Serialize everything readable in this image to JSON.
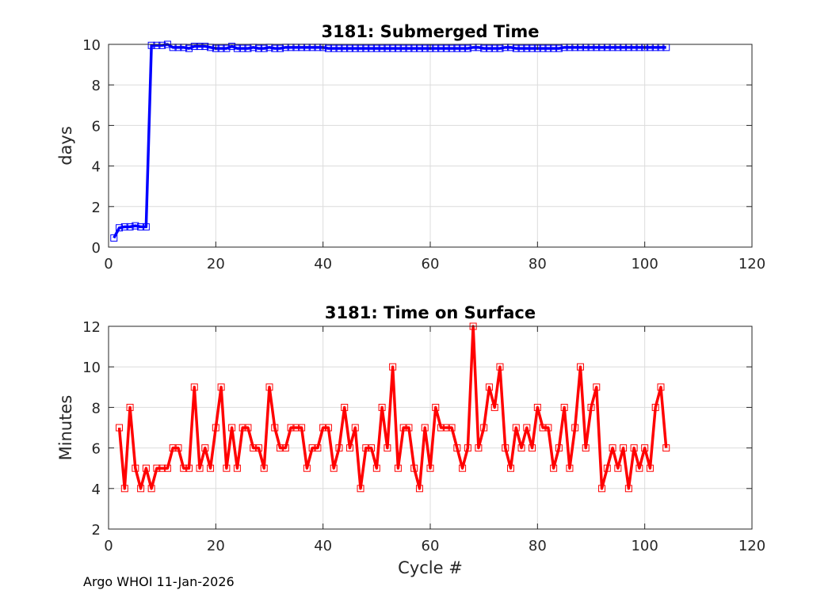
{
  "chart_data": [
    {
      "type": "line",
      "title": "3181: Submerged Time",
      "xlabel": "",
      "ylabel": "days",
      "xlim": [
        0,
        120
      ],
      "ylim": [
        0,
        10
      ],
      "xticks": [
        0,
        20,
        40,
        60,
        80,
        100,
        120
      ],
      "yticks": [
        0,
        2,
        4,
        6,
        8,
        10
      ],
      "grid": true,
      "color": "#0000ff",
      "marker": "square",
      "x": [
        1,
        2,
        3,
        4,
        5,
        6,
        7,
        8,
        9,
        10,
        11,
        12,
        13,
        14,
        15,
        16,
        17,
        18,
        19,
        20,
        21,
        22,
        23,
        24,
        25,
        26,
        27,
        28,
        29,
        30,
        31,
        32,
        33,
        34,
        35,
        36,
        37,
        38,
        39,
        40,
        41,
        42,
        43,
        44,
        45,
        46,
        47,
        48,
        49,
        50,
        51,
        52,
        53,
        54,
        55,
        56,
        57,
        58,
        59,
        60,
        61,
        62,
        63,
        64,
        65,
        66,
        67,
        68,
        69,
        70,
        71,
        72,
        73,
        74,
        75,
        76,
        77,
        78,
        79,
        80,
        81,
        82,
        83,
        84,
        85,
        86,
        87,
        88,
        89,
        90,
        91,
        92,
        93,
        94,
        95,
        96,
        97,
        98,
        99,
        100,
        101,
        102,
        103,
        104
      ],
      "y": [
        0.45,
        0.95,
        1.0,
        1.0,
        1.05,
        1.0,
        1.0,
        9.95,
        9.95,
        9.95,
        10.0,
        9.85,
        9.85,
        9.85,
        9.8,
        9.9,
        9.9,
        9.9,
        9.85,
        9.8,
        9.8,
        9.8,
        9.9,
        9.8,
        9.8,
        9.8,
        9.85,
        9.8,
        9.8,
        9.85,
        9.8,
        9.8,
        9.85,
        9.85,
        9.85,
        9.85,
        9.85,
        9.85,
        9.85,
        9.85,
        9.8,
        9.8,
        9.8,
        9.8,
        9.8,
        9.8,
        9.8,
        9.8,
        9.8,
        9.8,
        9.8,
        9.8,
        9.8,
        9.8,
        9.8,
        9.8,
        9.8,
        9.8,
        9.8,
        9.8,
        9.8,
        9.8,
        9.8,
        9.8,
        9.8,
        9.8,
        9.8,
        9.85,
        9.85,
        9.8,
        9.8,
        9.8,
        9.8,
        9.85,
        9.85,
        9.8,
        9.8,
        9.8,
        9.8,
        9.8,
        9.8,
        9.8,
        9.8,
        9.8,
        9.85,
        9.85,
        9.85,
        9.85,
        9.85,
        9.85,
        9.85,
        9.85,
        9.85,
        9.85,
        9.85,
        9.85,
        9.85,
        9.85,
        9.85,
        9.85,
        9.85,
        9.85,
        9.85,
        9.85
      ]
    },
    {
      "type": "line",
      "title": "3181: Time on Surface",
      "xlabel": "Cycle #",
      "ylabel": "Minutes",
      "xlim": [
        0,
        120
      ],
      "ylim": [
        2,
        12
      ],
      "xticks": [
        0,
        20,
        40,
        60,
        80,
        100,
        120
      ],
      "yticks": [
        2,
        4,
        6,
        8,
        10,
        12
      ],
      "grid": true,
      "color": "#ff0000",
      "marker": "square",
      "x": [
        2,
        3,
        4,
        5,
        6,
        7,
        8,
        9,
        10,
        11,
        12,
        13,
        14,
        15,
        16,
        17,
        18,
        19,
        20,
        21,
        22,
        23,
        24,
        25,
        26,
        27,
        28,
        29,
        30,
        31,
        32,
        33,
        34,
        35,
        36,
        37,
        38,
        39,
        40,
        41,
        42,
        43,
        44,
        45,
        46,
        47,
        48,
        49,
        50,
        51,
        52,
        53,
        54,
        55,
        56,
        57,
        58,
        59,
        60,
        61,
        62,
        63,
        64,
        65,
        66,
        67,
        68,
        69,
        70,
        71,
        72,
        73,
        74,
        75,
        76,
        77,
        78,
        79,
        80,
        81,
        82,
        83,
        84,
        85,
        86,
        87,
        88,
        89,
        90,
        91,
        92,
        93,
        94,
        95,
        96,
        97,
        98,
        99,
        100,
        101,
        102,
        103,
        104
      ],
      "y": [
        7,
        4,
        8,
        5,
        4,
        5,
        4,
        5,
        5,
        5,
        6,
        6,
        5,
        5,
        9,
        5,
        6,
        5,
        7,
        9,
        5,
        7,
        5,
        7,
        7,
        6,
        6,
        5,
        9,
        7,
        6,
        6,
        7,
        7,
        7,
        5,
        6,
        6,
        7,
        7,
        5,
        6,
        8,
        6,
        7,
        4,
        6,
        6,
        5,
        8,
        6,
        10,
        5,
        7,
        7,
        5,
        4,
        7,
        5,
        8,
        7,
        7,
        7,
        6,
        5,
        6,
        12,
        6,
        7,
        9,
        8,
        10,
        6,
        5,
        7,
        6,
        7,
        6,
        8,
        7,
        7,
        5,
        6,
        8,
        5,
        7,
        10,
        6,
        8,
        9,
        4,
        5,
        6,
        5,
        6,
        4,
        6,
        5,
        6,
        5,
        8,
        9,
        6
      ]
    }
  ],
  "footer": "Argo WHOI 11-Jan-2026"
}
